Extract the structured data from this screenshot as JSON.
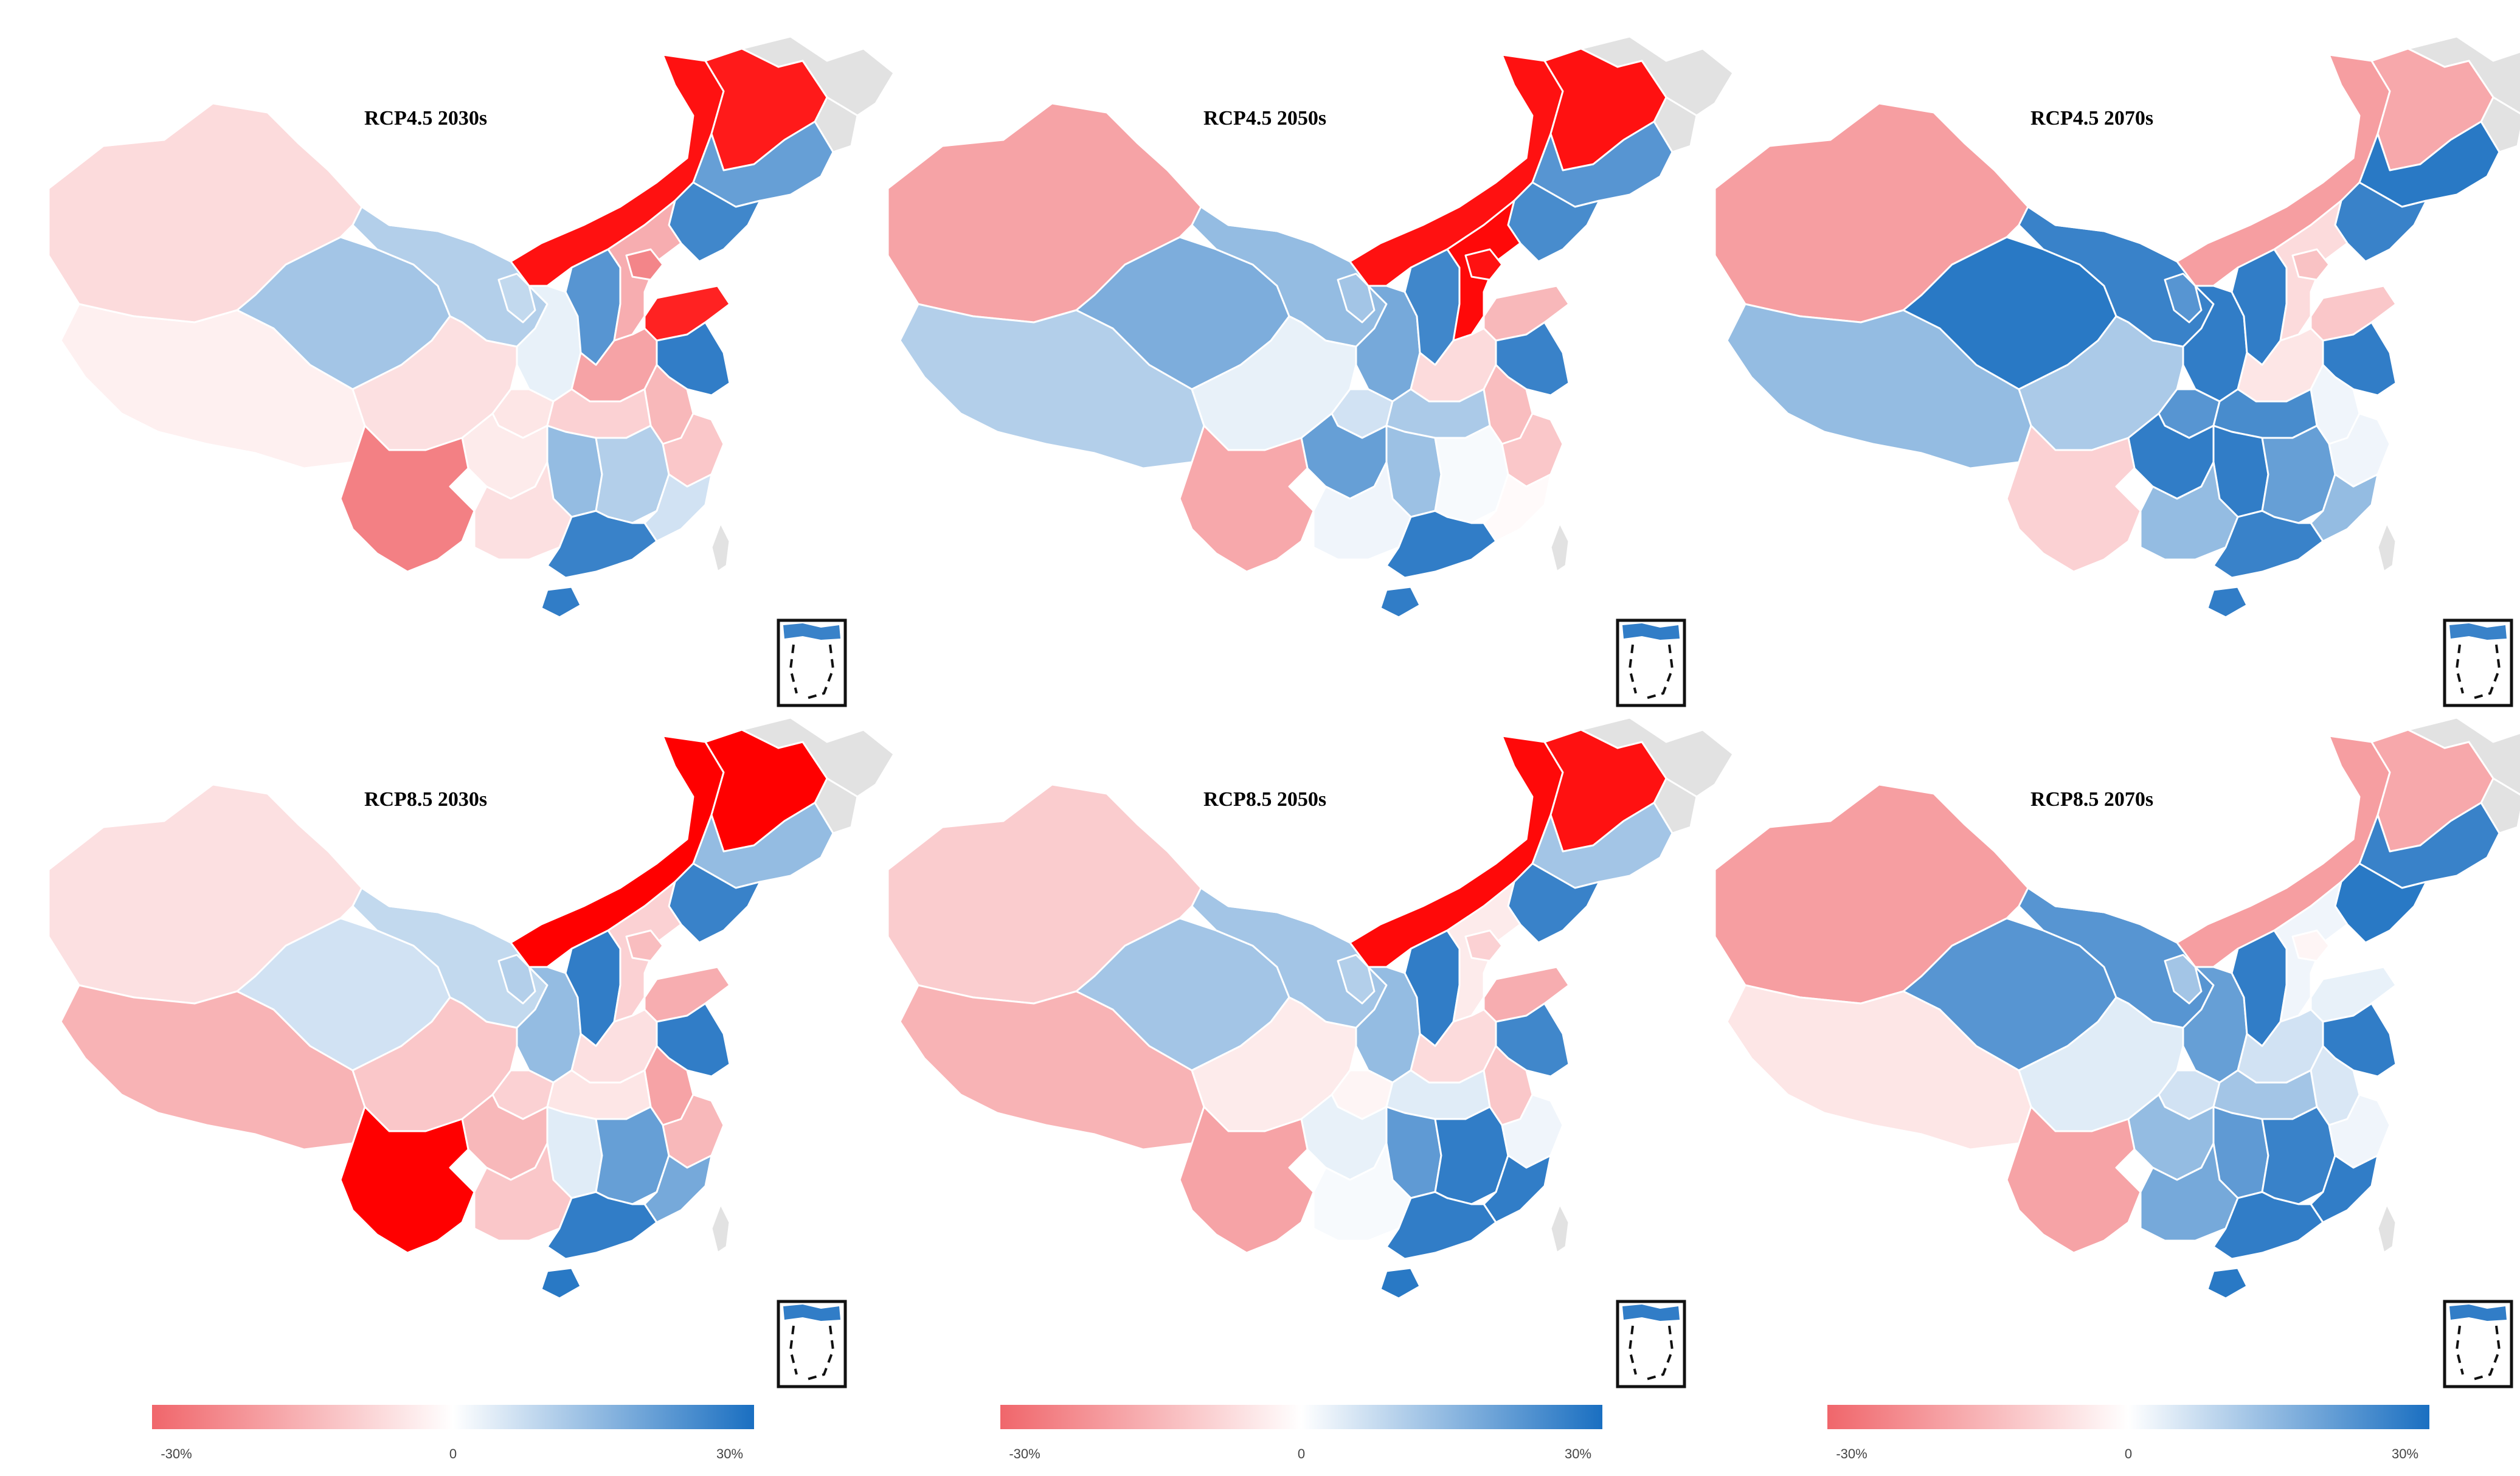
{
  "figure": {
    "panels": [
      {
        "title": "RCP4.5 2030s",
        "scenario": "RCP4.5",
        "period": "2030s",
        "values": {
          "xinjiang": -7,
          "tibet": -3,
          "qinghai": 12,
          "gansu": 10,
          "neimenggu": -28,
          "heilongjiang": -27,
          "jilin": 20,
          "liaoning": 25,
          "ningxia": 8,
          "shaanxi": 3,
          "shanxi": 22,
          "hebei": -16,
          "beijing_tianjin": -24,
          "shandong": -26,
          "henan": -18,
          "jiangsu": 27,
          "anhui": -14,
          "sichuan": -6,
          "chongqing": -5,
          "hubei": -9,
          "hunan": 14,
          "jiangxi": 10,
          "zhejiang": -11,
          "fujian": 6,
          "guizhou": -4,
          "yunnan": -25,
          "guangxi": -6,
          "guangdong": 26,
          "hainan": 27,
          "taiwan": null
        }
      },
      {
        "title": "RCP4.5 2050s",
        "scenario": "RCP4.5",
        "period": "2050s",
        "values": {
          "xinjiang": -18,
          "tibet": 10,
          "qinghai": 17,
          "gansu": 14,
          "neimenggu": -28,
          "heilongjiang": -28,
          "jilin": 22,
          "liaoning": 24,
          "ningxia": 12,
          "shaanxi": 18,
          "shanxi": 25,
          "hebei": -29,
          "beijing_tianjin": -28,
          "shandong": -14,
          "henan": -7,
          "jiangsu": 26,
          "anhui": -13,
          "sichuan": 3,
          "chongqing": 6,
          "hubei": 11,
          "hunan": 13,
          "jiangxi": 1,
          "zhejiang": -11,
          "fujian": -1,
          "guizhou": 20,
          "yunnan": -17,
          "guangxi": 2,
          "guangdong": 27,
          "hainan": 27,
          "taiwan": null
        }
      },
      {
        "title": "RCP4.5 2070s",
        "scenario": "RCP4.5",
        "period": "2070s",
        "values": {
          "xinjiang": -19,
          "tibet": 14,
          "qinghai": 28,
          "gansu": 26,
          "neimenggu": -19,
          "heilongjiang": -17,
          "jilin": 28,
          "liaoning": 26,
          "ningxia": 22,
          "shaanxi": 27,
          "shanxi": 27,
          "hebei": -7,
          "beijing_tianjin": -12,
          "shandong": -11,
          "henan": -5,
          "jiangsu": 27,
          "anhui": 2,
          "sichuan": 11,
          "chongqing": 22,
          "hubei": 24,
          "hunan": 27,
          "jiangxi": 20,
          "zhejiang": 2,
          "fujian": 14,
          "guizhou": 27,
          "yunnan": -9,
          "guangxi": 14,
          "guangdong": 26,
          "hainan": 27,
          "taiwan": null
        }
      },
      {
        "title": "RCP8.5 2030s",
        "scenario": "RCP8.5",
        "period": "2030s",
        "values": {
          "xinjiang": -6,
          "tibet": -15,
          "qinghai": 6,
          "gansu": 8,
          "neimenggu": -30,
          "heilongjiang": -30,
          "jilin": 14,
          "liaoning": 26,
          "ningxia": 10,
          "shaanxi": 14,
          "shanxi": 27,
          "hebei": -9,
          "beijing_tianjin": -13,
          "shandong": -16,
          "henan": -6,
          "jiangsu": 27,
          "anhui": -18,
          "sichuan": -11,
          "chongqing": -9,
          "hubei": -5,
          "hunan": 4,
          "jiangxi": 20,
          "zhejiang": -14,
          "fujian": 18,
          "guizhou": -14,
          "yunnan": -30,
          "guangxi": -11,
          "guangdong": 27,
          "hainan": 28,
          "taiwan": null
        }
      },
      {
        "title": "RCP8.5 2050s",
        "scenario": "RCP8.5",
        "period": "2050s",
        "values": {
          "xinjiang": -10,
          "tibet": -15,
          "qinghai": 12,
          "gansu": 12,
          "neimenggu": -29,
          "heilongjiang": -28,
          "jilin": 12,
          "liaoning": 26,
          "ningxia": 10,
          "shaanxi": 14,
          "shanxi": 27,
          "hebei": -4,
          "beijing_tianjin": -9,
          "shandong": -16,
          "henan": -7,
          "jiangsu": 25,
          "anhui": -11,
          "sichuan": -4,
          "chongqing": -2,
          "hubei": 4,
          "hunan": 21,
          "jiangxi": 27,
          "zhejiang": 2,
          "fujian": 27,
          "guizhou": 3,
          "yunnan": -18,
          "guangxi": 1,
          "guangdong": 27,
          "hainan": 28,
          "taiwan": null
        }
      },
      {
        "title": "RCP8.5 2070s",
        "scenario": "RCP8.5",
        "period": "2070s",
        "values": {
          "xinjiang": -19,
          "tibet": -5,
          "qinghai": 22,
          "gansu": 22,
          "neimenggu": -19,
          "heilongjiang": -17,
          "jilin": 26,
          "liaoning": 28,
          "ningxia": 12,
          "shaanxi": 20,
          "shanxi": 27,
          "hebei": 2,
          "beijing_tianjin": -2,
          "shandong": 3,
          "henan": 6,
          "jiangsu": 27,
          "anhui": 5,
          "sichuan": 4,
          "chongqing": 6,
          "hubei": 12,
          "hunan": 21,
          "jiangxi": 26,
          "zhejiang": 2,
          "fujian": 27,
          "guizhou": 14,
          "yunnan": -18,
          "guangxi": 18,
          "guangdong": 27,
          "hainan": 28,
          "taiwan": null
        }
      }
    ],
    "colorbar": {
      "min": -30,
      "max": 30,
      "min_label": "-30%",
      "mid_label": "0",
      "max_label": "30%",
      "neg_color": "#f0666b",
      "zero_color": "#ffffff",
      "pos_color": "#1a6fc1"
    },
    "nodata_color": "#e2e2e2",
    "neg_extreme_color": "#ff0000"
  }
}
